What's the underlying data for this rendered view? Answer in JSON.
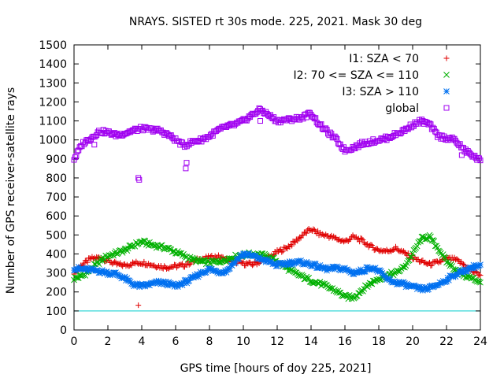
{
  "chart_data": {
    "type": "scatter",
    "title": "NRAYS. SISTED rt 30s mode. 225, 2021. Mask 30 deg",
    "xlabel": "GPS time [hours of doy 225, 2021]",
    "ylabel": "Number of GPS receiver-satellite rays",
    "xlim": [
      0,
      24
    ],
    "ylim": [
      0,
      1500
    ],
    "xticks": [
      "0",
      "2",
      "4",
      "6",
      "8",
      "10",
      "12",
      "14",
      "16",
      "18",
      "20",
      "22",
      "24"
    ],
    "yticks": [
      "0",
      "100",
      "200",
      "300",
      "400",
      "500",
      "600",
      "700",
      "800",
      "900",
      "1000",
      "1100",
      "1200",
      "1300",
      "1400",
      "1500"
    ],
    "legend_position": "top-right",
    "threshold_line": {
      "y": 100,
      "color": "#00cccc"
    },
    "series": [
      {
        "name": "I1: SZA < 70",
        "marker": "plus",
        "color": "#e00000",
        "x": [
          0,
          0.5,
          1,
          1.5,
          2,
          2.5,
          3,
          3.5,
          4,
          4.5,
          5,
          5.5,
          6,
          6.5,
          7,
          7.5,
          8,
          8.5,
          9,
          9.5,
          10,
          10.5,
          11,
          11.5,
          12,
          12.5,
          13,
          13.5,
          14,
          14.5,
          15,
          15.5,
          16,
          16.5,
          17,
          17.5,
          18,
          18.5,
          19,
          19.5,
          20,
          20.5,
          21,
          21.5,
          22,
          22.5,
          23,
          23.5,
          24
        ],
        "y": [
          305,
          345,
          375,
          380,
          365,
          345,
          340,
          350,
          355,
          345,
          335,
          330,
          335,
          340,
          360,
          375,
          380,
          385,
          370,
          360,
          350,
          345,
          360,
          380,
          410,
          430,
          460,
          500,
          530,
          505,
          495,
          480,
          465,
          490,
          470,
          440,
          420,
          415,
          430,
          405,
          380,
          360,
          345,
          355,
          375,
          370,
          345,
          310,
          290
        ],
        "outliers": [
          {
            "x": 3.8,
            "y": 130
          }
        ]
      },
      {
        "name": "I2: 70 <= SZA <= 110",
        "marker": "cross",
        "color": "#00b000",
        "x": [
          0,
          0.5,
          1,
          1.5,
          2,
          2.5,
          3,
          3.5,
          4,
          4.5,
          5,
          5.5,
          6,
          6.5,
          7,
          7.5,
          8,
          8.5,
          9,
          9.5,
          10,
          10.5,
          11,
          11.5,
          12,
          12.5,
          13,
          13.5,
          14,
          14.5,
          15,
          15.5,
          16,
          16.5,
          17,
          17.5,
          18,
          18.5,
          19,
          19.5,
          20,
          20.5,
          21,
          21.5,
          22,
          22.5,
          23,
          23.5,
          24
        ],
        "y": [
          270,
          285,
          320,
          360,
          390,
          405,
          420,
          445,
          465,
          450,
          440,
          430,
          410,
          390,
          370,
          360,
          355,
          360,
          370,
          385,
          395,
          400,
          395,
          385,
          360,
          330,
          300,
          280,
          260,
          245,
          225,
          205,
          175,
          170,
          210,
          245,
          270,
          290,
          300,
          330,
          400,
          480,
          490,
          430,
          360,
          320,
          290,
          270,
          255
        ]
      },
      {
        "name": "I3: SZA > 110",
        "marker": "star",
        "color": "#0070f0",
        "x": [
          0,
          0.5,
          1,
          1.5,
          2,
          2.5,
          3,
          3.5,
          4,
          4.5,
          5,
          5.5,
          6,
          6.5,
          7,
          7.5,
          8,
          8.5,
          9,
          9.5,
          10,
          10.5,
          11,
          11.5,
          12,
          12.5,
          13,
          13.5,
          14,
          14.5,
          15,
          15.5,
          16,
          16.5,
          17,
          17.5,
          18,
          18.5,
          19,
          19.5,
          20,
          20.5,
          21,
          21.5,
          22,
          22.5,
          23,
          23.5,
          24
        ],
        "y": [
          325,
          320,
          315,
          310,
          300,
          295,
          270,
          240,
          230,
          240,
          250,
          245,
          230,
          250,
          270,
          300,
          320,
          305,
          310,
          360,
          400,
          390,
          375,
          360,
          340,
          350,
          355,
          355,
          345,
          330,
          320,
          325,
          320,
          300,
          310,
          330,
          310,
          265,
          250,
          240,
          225,
          215,
          220,
          240,
          265,
          290,
          310,
          330,
          340
        ]
      },
      {
        "name": "global",
        "marker": "square",
        "color": "#a000f0",
        "x": [
          0,
          0.5,
          1,
          1.5,
          2,
          2.5,
          3,
          3.5,
          4,
          4.5,
          5,
          5.5,
          6,
          6.5,
          7,
          7.5,
          8,
          8.5,
          9,
          9.5,
          10,
          10.5,
          11,
          11.5,
          12,
          12.5,
          13,
          13.5,
          14,
          14.5,
          15,
          15.5,
          16,
          16.5,
          17,
          17.5,
          18,
          18.5,
          19,
          19.5,
          20,
          20.5,
          21,
          21.5,
          22,
          22.5,
          23,
          23.5,
          24
        ],
        "y": [
          900,
          980,
          1010,
          1045,
          1040,
          1025,
          1035,
          1050,
          1060,
          1055,
          1050,
          1030,
          1000,
          970,
          990,
          1000,
          1020,
          1050,
          1070,
          1080,
          1100,
          1130,
          1160,
          1130,
          1100,
          1105,
          1110,
          1120,
          1140,
          1080,
          1040,
          1000,
          945,
          960,
          980,
          990,
          1000,
          1010,
          1030,
          1050,
          1080,
          1100,
          1080,
          1020,
          1010,
          1000,
          950,
          920,
          890
        ],
        "outliers": [
          {
            "x": 1.2,
            "y": 975
          },
          {
            "x": 3.8,
            "y": 800
          },
          {
            "x": 3.85,
            "y": 790
          },
          {
            "x": 6.6,
            "y": 850
          },
          {
            "x": 6.65,
            "y": 880
          },
          {
            "x": 11.0,
            "y": 1100
          },
          {
            "x": 22.9,
            "y": 920
          }
        ]
      }
    ]
  }
}
